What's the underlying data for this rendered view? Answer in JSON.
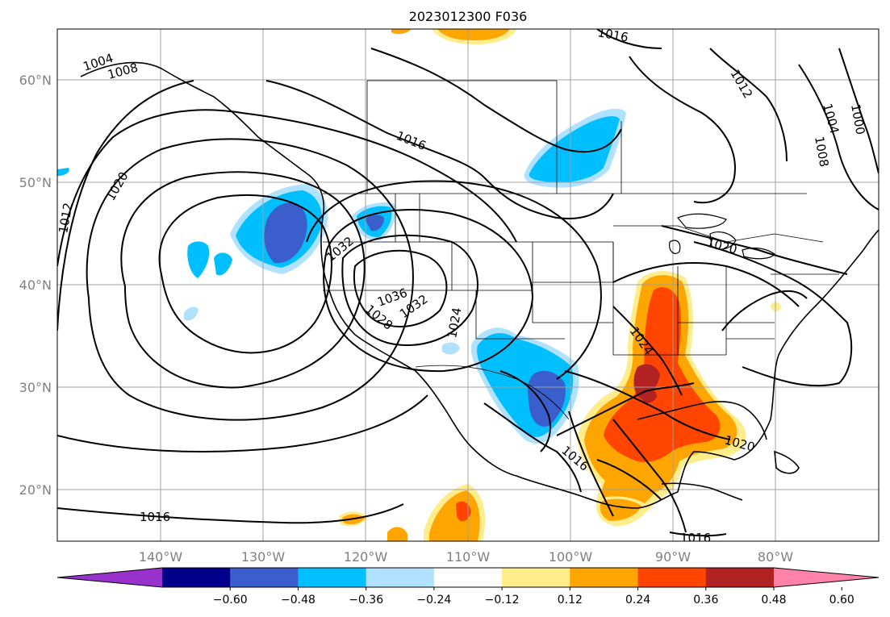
{
  "title": "2023012300 F036",
  "latitude_labels": [
    "60°N",
    "50°N",
    "40°N",
    "30°N",
    "20°N"
  ],
  "longitude_labels": [
    "140°W",
    "130°W",
    "120°W",
    "110°W",
    "100°W",
    "90°W",
    "80°W"
  ],
  "colorbar": {
    "ticks": [
      "−0.60",
      "−0.48",
      "−0.36",
      "−0.24",
      "−0.12",
      "0.12",
      "0.24",
      "0.36",
      "0.48",
      "0.60"
    ],
    "colors": [
      "#9932cc",
      "#00008b",
      "#3a5fcd",
      "#00bfff",
      "#b0e2ff",
      "#ffffff",
      "#ffec8b",
      "#ffa500",
      "#ff4500",
      "#b22222",
      "#ff82ab"
    ]
  },
  "isobar_labels": [
    "1004",
    "1008",
    "1012",
    "1016",
    "1020",
    "1016",
    "1012",
    "1004",
    "1000",
    "1008",
    "1020",
    "1016",
    "1032",
    "1036",
    "1032",
    "1028",
    "1024",
    "1024",
    "1020",
    "1016",
    "1016",
    "1016"
  ]
}
